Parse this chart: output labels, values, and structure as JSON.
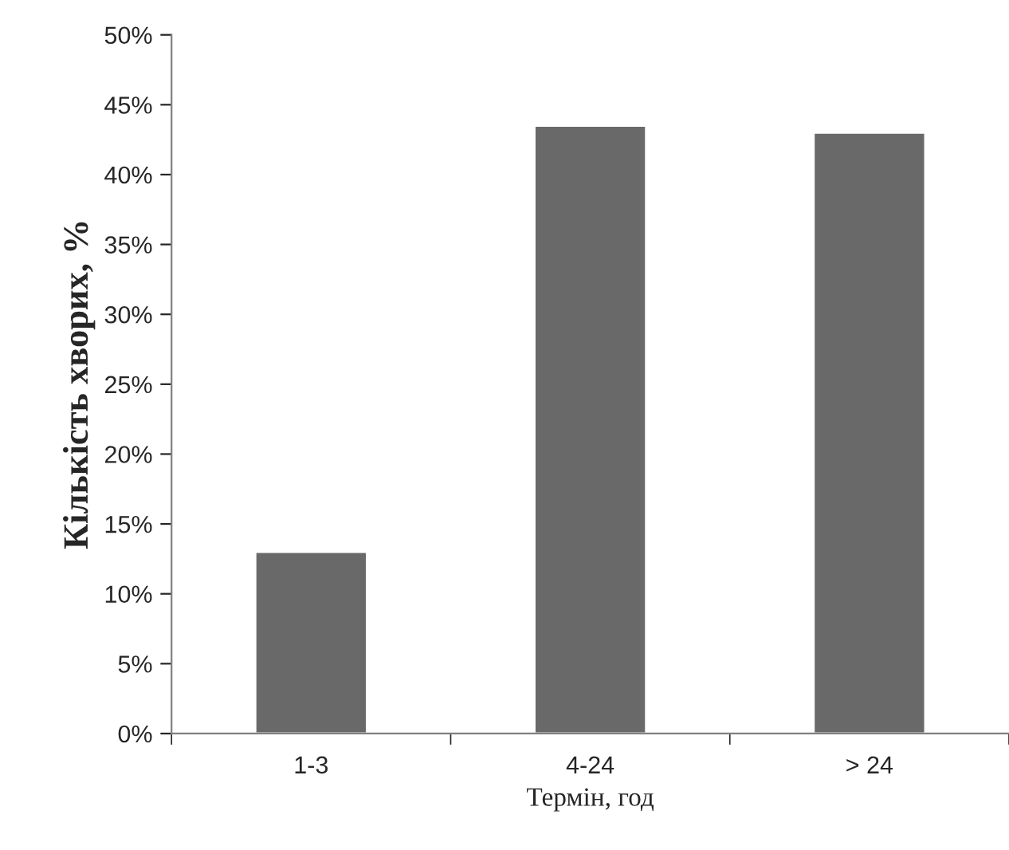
{
  "chart_data": {
    "type": "bar",
    "xlabel": "Термін, год",
    "ylabel": "Кількість хворих, %",
    "categories": [
      "1-3",
      "4-24",
      "> 24"
    ],
    "series": [
      {
        "color": "#696969",
        "values": [
          13,
          43.5,
          43
        ]
      }
    ],
    "ylim": [
      0,
      50
    ],
    "yticks": [
      {
        "value": 0,
        "label": "0%"
      },
      {
        "value": 5,
        "label": "5%"
      },
      {
        "value": 10,
        "label": "10%"
      },
      {
        "value": 15,
        "label": "15%"
      },
      {
        "value": 20,
        "label": "20%"
      },
      {
        "value": 25,
        "label": "25%"
      },
      {
        "value": 30,
        "label": "30%"
      },
      {
        "value": 35,
        "label": "35%"
      },
      {
        "value": 40,
        "label": "40%"
      },
      {
        "value": 45,
        "label": "45%"
      },
      {
        "value": 50,
        "label": "50%"
      }
    ],
    "grid": false,
    "legend": false
  }
}
